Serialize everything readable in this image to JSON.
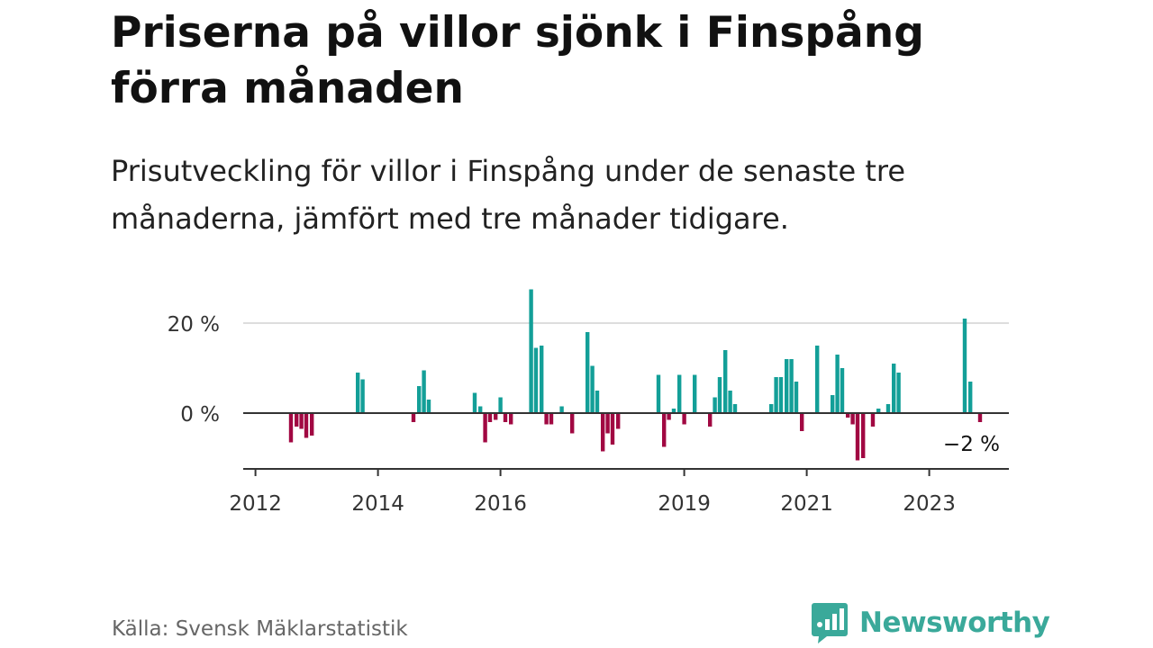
{
  "header": {
    "title": "Priserna på villor sjönk i Finspång förra månaden",
    "subtitle": "Prisutveckling för villor i Finspång under de senaste tre månaderna, jämfört med tre månader tidigare."
  },
  "footer": {
    "source": "Källa: Svensk Mäklarstatistik",
    "brand": "Newsworthy",
    "brand_icon": "bar-chart-speech-bubble-icon",
    "brand_color": "#3aa99a"
  },
  "chart_data": {
    "type": "bar",
    "x_unit": "year",
    "xlim": [
      2011.8,
      2024.3
    ],
    "ylim": [
      -12,
      28
    ],
    "grid": true,
    "y_ticks": [
      {
        "value": 20,
        "label": "20 %"
      },
      {
        "value": 0,
        "label": "0 %"
      }
    ],
    "x_ticks": [
      {
        "value": 2012,
        "label": "2012"
      },
      {
        "value": 2014,
        "label": "2014"
      },
      {
        "value": 2016,
        "label": "2016"
      },
      {
        "value": 2019,
        "label": "2019"
      },
      {
        "value": 2021,
        "label": "2021"
      },
      {
        "value": 2023,
        "label": "2023"
      }
    ],
    "colors": {
      "positive": "#139f98",
      "negative": "#a10842",
      "axis": "#333333",
      "grid": "#dddddd"
    },
    "last_value_label": "−2 %",
    "bars": [
      {
        "x": 2012.58,
        "y": -6.5
      },
      {
        "x": 2012.67,
        "y": -3
      },
      {
        "x": 2012.75,
        "y": -3.5
      },
      {
        "x": 2012.83,
        "y": -5.5
      },
      {
        "x": 2012.92,
        "y": -5
      },
      {
        "x": 2013.67,
        "y": 9
      },
      {
        "x": 2013.75,
        "y": 7.5
      },
      {
        "x": 2014.58,
        "y": -2
      },
      {
        "x": 2014.67,
        "y": 6
      },
      {
        "x": 2014.75,
        "y": 9.5
      },
      {
        "x": 2014.83,
        "y": 3
      },
      {
        "x": 2015.58,
        "y": 4.5
      },
      {
        "x": 2015.67,
        "y": 1.5
      },
      {
        "x": 2015.75,
        "y": -6.5
      },
      {
        "x": 2015.83,
        "y": -2
      },
      {
        "x": 2015.92,
        "y": -1.5
      },
      {
        "x": 2016.0,
        "y": 3.5
      },
      {
        "x": 2016.08,
        "y": -2
      },
      {
        "x": 2016.17,
        "y": -2.5
      },
      {
        "x": 2016.5,
        "y": 27.5
      },
      {
        "x": 2016.58,
        "y": 14.5
      },
      {
        "x": 2016.67,
        "y": 15
      },
      {
        "x": 2016.75,
        "y": -2.5
      },
      {
        "x": 2016.83,
        "y": -2.5
      },
      {
        "x": 2017.0,
        "y": 1.5
      },
      {
        "x": 2017.17,
        "y": -4.5
      },
      {
        "x": 2017.42,
        "y": 18
      },
      {
        "x": 2017.5,
        "y": 10.5
      },
      {
        "x": 2017.58,
        "y": 5
      },
      {
        "x": 2017.67,
        "y": -8.5
      },
      {
        "x": 2017.75,
        "y": -4.5
      },
      {
        "x": 2017.83,
        "y": -7
      },
      {
        "x": 2017.92,
        "y": -3.5
      },
      {
        "x": 2018.58,
        "y": 8.5
      },
      {
        "x": 2018.67,
        "y": -7.5
      },
      {
        "x": 2018.75,
        "y": -1.5
      },
      {
        "x": 2018.83,
        "y": 1
      },
      {
        "x": 2018.92,
        "y": 8.5
      },
      {
        "x": 2019.0,
        "y": -2.5
      },
      {
        "x": 2019.17,
        "y": 8.5
      },
      {
        "x": 2019.42,
        "y": -3
      },
      {
        "x": 2019.5,
        "y": 3.5
      },
      {
        "x": 2019.58,
        "y": 8
      },
      {
        "x": 2019.67,
        "y": 14
      },
      {
        "x": 2019.75,
        "y": 5
      },
      {
        "x": 2019.83,
        "y": 2
      },
      {
        "x": 2020.42,
        "y": 2
      },
      {
        "x": 2020.5,
        "y": 8
      },
      {
        "x": 2020.58,
        "y": 8
      },
      {
        "x": 2020.67,
        "y": 12
      },
      {
        "x": 2020.75,
        "y": 12
      },
      {
        "x": 2020.83,
        "y": 7
      },
      {
        "x": 2020.92,
        "y": -4
      },
      {
        "x": 2021.17,
        "y": 15
      },
      {
        "x": 2021.42,
        "y": 4
      },
      {
        "x": 2021.5,
        "y": 13
      },
      {
        "x": 2021.58,
        "y": 10
      },
      {
        "x": 2021.67,
        "y": -1
      },
      {
        "x": 2021.75,
        "y": -2.5
      },
      {
        "x": 2021.83,
        "y": -10.5
      },
      {
        "x": 2021.92,
        "y": -10
      },
      {
        "x": 2022.08,
        "y": -3
      },
      {
        "x": 2022.17,
        "y": 1
      },
      {
        "x": 2022.33,
        "y": 2
      },
      {
        "x": 2022.42,
        "y": 11
      },
      {
        "x": 2022.5,
        "y": 9
      },
      {
        "x": 2023.58,
        "y": 21
      },
      {
        "x": 2023.67,
        "y": 7
      },
      {
        "x": 2023.83,
        "y": -2
      }
    ]
  }
}
